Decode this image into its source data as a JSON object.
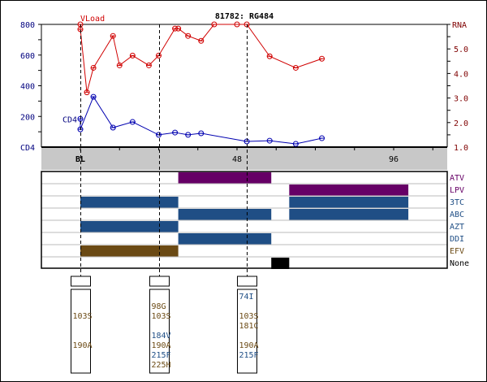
{
  "chart_data": {
    "type": "line",
    "title": "81782: RG484",
    "x_unit": "weeks",
    "x_ticks": [
      {
        "week": 0,
        "label": "BL"
      },
      {
        "week": 48,
        "label": "48"
      },
      {
        "week": 96,
        "label": "96"
      }
    ],
    "x_range": [
      -12,
      112
    ],
    "left_axis": {
      "label": "CD4",
      "range": [
        0,
        800
      ],
      "ticks": [
        200,
        400,
        600,
        800
      ],
      "color": "#00007f"
    },
    "right_axis": {
      "label": "RNA",
      "range": [
        1.0,
        6.0
      ],
      "ticks": [
        "1.0",
        "2.0",
        "3.0",
        "4.0",
        "5.0"
      ],
      "color": "#7f0000"
    },
    "series": [
      {
        "name": "VLoad",
        "axis": "right",
        "color": "#d00000",
        "points": [
          [
            0,
            6.0
          ],
          [
            0,
            5.8
          ],
          [
            2,
            3.23
          ],
          [
            4,
            4.23
          ],
          [
            10,
            5.53
          ],
          [
            12,
            4.33
          ],
          [
            16,
            4.73
          ],
          [
            21,
            4.33
          ],
          [
            24,
            4.73
          ],
          [
            29,
            5.83
          ],
          [
            30,
            5.83
          ],
          [
            33,
            5.53
          ],
          [
            37,
            5.33
          ],
          [
            41,
            6.0
          ],
          [
            48,
            6.0
          ],
          [
            51,
            6.0
          ],
          [
            58,
            4.7
          ],
          [
            66,
            4.23
          ],
          [
            74,
            4.6
          ]
        ]
      },
      {
        "name": "CD4",
        "axis": "left",
        "color": "#0000b0",
        "points": [
          [
            0,
            184
          ],
          [
            0,
            116
          ],
          [
            4,
            328
          ],
          [
            10,
            127
          ],
          [
            16,
            164
          ],
          [
            24,
            80
          ],
          [
            29,
            95
          ],
          [
            33,
            80
          ],
          [
            37,
            90
          ],
          [
            51,
            37
          ],
          [
            58,
            42
          ],
          [
            66,
            21
          ],
          [
            74,
            58
          ]
        ]
      }
    ],
    "genotype_weeks": [
      0,
      24,
      51
    ],
    "drugs": [
      {
        "name": "ATV",
        "color": "#660066",
        "label_color": "#660066",
        "periods": [
          [
            30,
            58.5
          ]
        ]
      },
      {
        "name": "LPV",
        "color": "#660066",
        "label_color": "#660066",
        "periods": [
          [
            64,
            100.5
          ]
        ]
      },
      {
        "name": "3TC",
        "color": "#1f4e85",
        "label_color": "#1f4e85",
        "periods": [
          [
            0,
            30
          ],
          [
            64,
            100.5
          ]
        ]
      },
      {
        "name": "ABC",
        "color": "#1f4e85",
        "label_color": "#1f4e85",
        "periods": [
          [
            30,
            58.5
          ],
          [
            64,
            100.5
          ]
        ]
      },
      {
        "name": "AZT",
        "color": "#1f4e85",
        "label_color": "#1f4e85",
        "periods": [
          [
            0,
            30
          ]
        ]
      },
      {
        "name": "DDI",
        "color": "#1f4e85",
        "label_color": "#1f4e85",
        "periods": [
          [
            30,
            58.5
          ]
        ]
      },
      {
        "name": "EFV",
        "color": "#6b4a14",
        "label_color": "#6b4a14",
        "periods": [
          [
            0,
            30
          ]
        ]
      },
      {
        "name": "None",
        "color": "#000000",
        "label_color": "#000000",
        "periods": [
          [
            58.5,
            64
          ]
        ]
      }
    ],
    "mutations": [
      {
        "week": 0,
        "items": [
          {
            "slot": 2,
            "text": "103S",
            "cls": "nnrti"
          },
          {
            "slot": 5,
            "text": "190A",
            "cls": "nnrti"
          }
        ]
      },
      {
        "week": 24,
        "items": [
          {
            "slot": 1,
            "text": "98G",
            "cls": "nnrti"
          },
          {
            "slot": 2,
            "text": "103S",
            "cls": "nnrti"
          },
          {
            "slot": 4,
            "text": "184V",
            "cls": "nrti"
          },
          {
            "slot": 5,
            "text": "190A",
            "cls": "nnrti"
          },
          {
            "slot": 6,
            "text": "215F",
            "cls": "nrti"
          },
          {
            "slot": 7,
            "text": "225H",
            "cls": "nnrti"
          }
        ]
      },
      {
        "week": 51,
        "items": [
          {
            "slot": 0,
            "text": "74I",
            "cls": "nrti"
          },
          {
            "slot": 2,
            "text": "103S",
            "cls": "nnrti"
          },
          {
            "slot": 3,
            "text": "181C",
            "cls": "nnrti"
          },
          {
            "slot": 5,
            "text": "190A",
            "cls": "nnrti"
          },
          {
            "slot": 6,
            "text": "215F",
            "cls": "nrti"
          }
        ]
      }
    ],
    "mutation_colors": {
      "nrti": "#1f4e85",
      "nnrti": "#6b4a14"
    }
  }
}
